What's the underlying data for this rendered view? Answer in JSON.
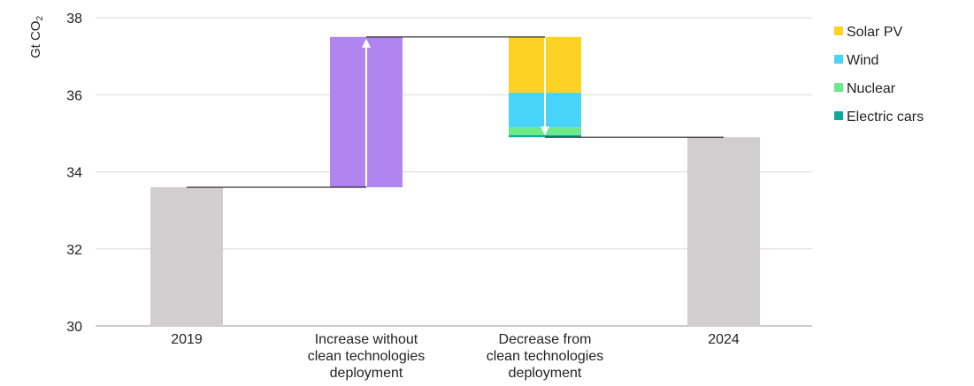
{
  "chart_data": {
    "type": "bar",
    "subtype": "waterfall",
    "ylabel": "Gt CO",
    "ylabel_subscript": "2",
    "ylim": [
      30,
      38
    ],
    "yticks": [
      "30",
      "32",
      "34",
      "36",
      "38"
    ],
    "grid": true,
    "legend_position": "top-right",
    "categories": [
      [
        "2019"
      ],
      [
        "Increase without",
        "clean technologies",
        "deployment"
      ],
      [
        "Decrease from",
        "clean technologies",
        "deployment"
      ],
      [
        "2024"
      ]
    ],
    "totals": [
      {
        "category": 0,
        "value": 33.6,
        "color": "#d0cece"
      },
      {
        "category": 3,
        "value": 34.9,
        "color": "#d0cece"
      }
    ],
    "increase": {
      "category": 1,
      "from": 33.6,
      "to": 37.5,
      "color": "#b085ef"
    },
    "decrease": {
      "category": 2,
      "from": 37.5,
      "to": 34.9,
      "segments": [
        {
          "name": "Solar PV",
          "value": 1.45,
          "color": "#fdd323"
        },
        {
          "name": "Wind",
          "value": 0.9,
          "color": "#48d3fb"
        },
        {
          "name": "Nuclear",
          "value": 0.2,
          "color": "#6ee98a"
        },
        {
          "name": "Electric cars",
          "value": 0.05,
          "color": "#0ea99b"
        }
      ]
    },
    "legend": [
      {
        "label": "Solar PV",
        "color": "#fdd323"
      },
      {
        "label": "Wind",
        "color": "#48d3fb"
      },
      {
        "label": "Nuclear",
        "color": "#6ee98a"
      },
      {
        "label": "Electric cars",
        "color": "#0ea99b"
      }
    ]
  }
}
